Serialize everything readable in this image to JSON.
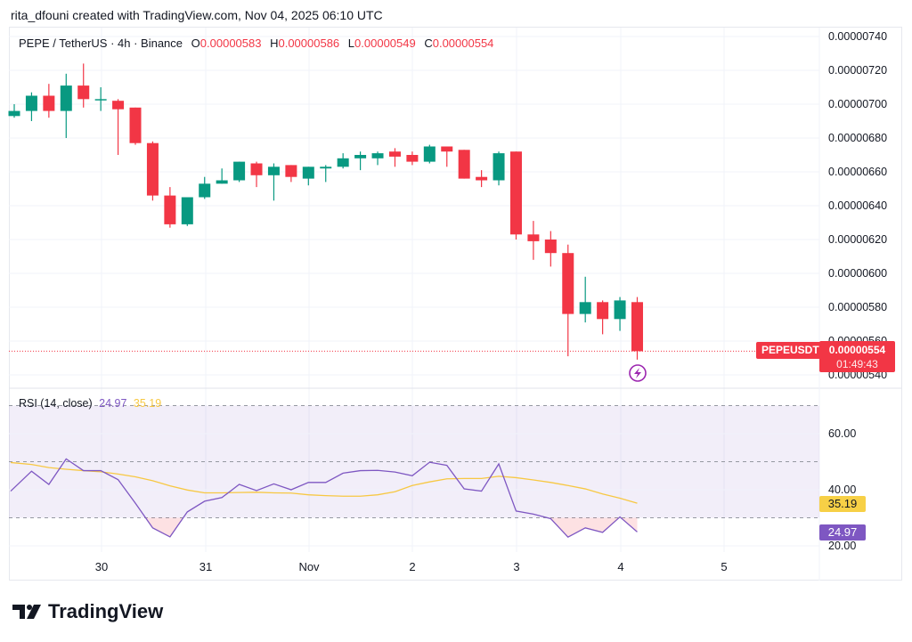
{
  "attribution": "rita_dfouni created with TradingView.com, Nov 04, 2025 06:10 UTC",
  "legend": {
    "symbol": "PEPE / TetherUS · 4h · Binance",
    "o_label": "O",
    "o": "0.00000583",
    "h_label": "H",
    "h": "0.00000586",
    "l_label": "L",
    "l": "0.00000549",
    "c_label": "C",
    "c": "0.00000554"
  },
  "price_tag": {
    "symbol": "PEPEUSDT",
    "price": "0.00000554",
    "countdown": "01:49:43"
  },
  "rsi_legend": {
    "label": "RSI (14, close)",
    "rsi": "24.97",
    "ma": "35.19"
  },
  "rsi_tags": {
    "rsi": "24.97",
    "ma": "35.19"
  },
  "logo_text": "TradingView",
  "colors": {
    "up": "#089981",
    "down": "#f23645",
    "rsi": "#7e57c2",
    "rsi_ma": "#f7c843",
    "grid": "#f0f3fa"
  },
  "icons": [
    "lightning-icon",
    "tradingview-logo-icon"
  ],
  "chart_data": [
    {
      "type": "candlestick",
      "title": "PEPE / TetherUS · 4h · Binance",
      "price_unit": "1e-8 USDT",
      "y_ticks": [
        "0.00000740",
        "0.00000720",
        "0.00000700",
        "0.00000680",
        "0.00000660",
        "0.00000640",
        "0.00000620",
        "0.00000600",
        "0.00000580",
        "0.00000560",
        "0.00000540"
      ],
      "y_tick_values": [
        740,
        720,
        700,
        680,
        660,
        640,
        620,
        600,
        580,
        560,
        540
      ],
      "x_ticks": [
        "30",
        "31",
        "Nov",
        "2",
        "3",
        "4",
        "5"
      ],
      "grid": true,
      "ohlc": [
        [
          693,
          700,
          692,
          696
        ],
        [
          696,
          707,
          690,
          705
        ],
        [
          705,
          712,
          692,
          696
        ],
        [
          696,
          718,
          680,
          711
        ],
        [
          711,
          724,
          698,
          703
        ],
        [
          703,
          710,
          696,
          703
        ],
        [
          702,
          703,
          670,
          697
        ],
        [
          698,
          698,
          676,
          677
        ],
        [
          677,
          678,
          643,
          646
        ],
        [
          646,
          651,
          627,
          629
        ],
        [
          629,
          645,
          628,
          645
        ],
        [
          645,
          657,
          644,
          653
        ],
        [
          653,
          662,
          653,
          655
        ],
        [
          655,
          666,
          654,
          666
        ],
        [
          665,
          666,
          651,
          658
        ],
        [
          658,
          665,
          643,
          663
        ],
        [
          664,
          664,
          654,
          657
        ],
        [
          656,
          663,
          652,
          663
        ],
        [
          662,
          664,
          654,
          663
        ],
        [
          663,
          671,
          662,
          668
        ],
        [
          668,
          672,
          661,
          670
        ],
        [
          668,
          672,
          664,
          671
        ],
        [
          672,
          674,
          663,
          669
        ],
        [
          670,
          672,
          664,
          666
        ],
        [
          666,
          676,
          665,
          675
        ],
        [
          675,
          675,
          663,
          672
        ],
        [
          673,
          673,
          656,
          656
        ],
        [
          657,
          661,
          651,
          655
        ],
        [
          655,
          672,
          652,
          671
        ],
        [
          672,
          672,
          620,
          623
        ],
        [
          623,
          631,
          608,
          619
        ],
        [
          620,
          625,
          604,
          612
        ],
        [
          612,
          617,
          551,
          576
        ],
        [
          576,
          598,
          571,
          583
        ],
        [
          583,
          584,
          564,
          573
        ],
        [
          573,
          586,
          566,
          584
        ],
        [
          583,
          586,
          549,
          554
        ]
      ],
      "last_price": 554
    },
    {
      "type": "line",
      "title": "RSI (14, close)",
      "y_ticks": [
        "60.00",
        "40.00",
        "20.00"
      ],
      "y_tick_values": [
        60,
        40,
        20
      ],
      "bands": [
        30,
        50,
        70
      ],
      "series": [
        {
          "name": "RSI",
          "values": [
            39.5,
            46.6,
            41.9,
            51.0,
            46.8,
            46.8,
            43.6,
            35.2,
            26.4,
            23.2,
            32.1,
            35.9,
            37.2,
            41.9,
            39.7,
            42.1,
            40.0,
            42.6,
            42.6,
            45.9,
            46.8,
            46.9,
            46.3,
            45.0,
            49.8,
            48.7,
            40.3,
            39.5,
            49.2,
            32.4,
            31.3,
            29.7,
            23.1,
            26.4,
            24.8,
            30.3,
            24.97
          ]
        },
        {
          "name": "RSI-based MA",
          "values": [
            49.7,
            49.0,
            47.9,
            47.3,
            46.8,
            46.4,
            45.6,
            44.6,
            43.2,
            41.4,
            39.9,
            38.9,
            38.9,
            39.0,
            39.1,
            38.9,
            38.8,
            38.2,
            37.9,
            37.7,
            37.7,
            38.2,
            39.3,
            41.5,
            42.8,
            43.9,
            44.0,
            44.0,
            44.8,
            44.3,
            43.5,
            42.6,
            41.5,
            40.3,
            38.5,
            37.0,
            35.19
          ]
        }
      ]
    }
  ]
}
